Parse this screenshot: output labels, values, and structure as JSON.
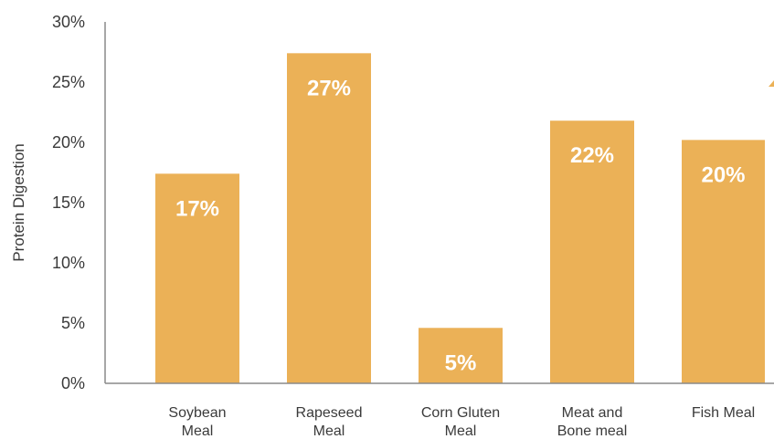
{
  "chart_data": {
    "type": "bar",
    "title": "",
    "xlabel": "",
    "ylabel": "Protein Digestion",
    "categories": [
      [
        "Soybean",
        "Meal"
      ],
      [
        "Rapeseed",
        "Meal"
      ],
      [
        "Corn Gluten",
        "Meal"
      ],
      [
        "Meat and",
        "Bone meal"
      ],
      [
        "Fish Meal"
      ]
    ],
    "values": [
      17.4,
      27.4,
      4.6,
      21.8,
      20.2
    ],
    "data_labels": [
      "17%",
      "27%",
      "5%",
      "22%",
      "20%"
    ],
    "yticks": [
      0,
      5,
      10,
      15,
      20,
      25,
      30
    ],
    "ytick_labels": [
      "0%",
      "5%",
      "10%",
      "15%",
      "20%",
      "25%",
      "30%"
    ],
    "ylim": [
      0,
      30
    ],
    "grid": false,
    "legend": "none",
    "colors": {
      "bar": "#EBB157",
      "axis": "#8a8a8a",
      "text": "#3a3a3a",
      "bar_label": "#ffffff"
    }
  }
}
